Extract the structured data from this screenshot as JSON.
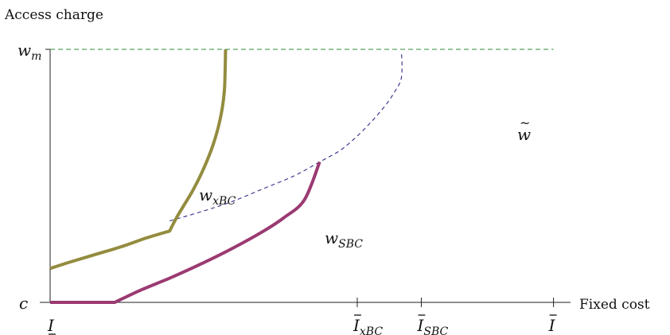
{
  "chart_data": {
    "type": "line",
    "ylabel": "Access charge",
    "xlabel": "Fixed cost",
    "y_ticks": [
      {
        "base": "c",
        "sub": "",
        "y": 0
      },
      {
        "base": "w",
        "sub": "m",
        "y": 1
      }
    ],
    "x_ticks": [
      {
        "base": "I",
        "sub": "",
        "mark": "underline",
        "x": 0
      },
      {
        "base": "I",
        "sub": "xBC",
        "mark": "bar",
        "x": 0.604
      },
      {
        "base": "I",
        "sub": "SBC",
        "mark": "bar",
        "x": 0.73
      },
      {
        "base": "I",
        "sub": "",
        "mark": "bar",
        "x": 0.99
      }
    ],
    "xlim": [
      0,
      1
    ],
    "ylim": [
      0,
      1
    ],
    "series": [
      {
        "name": "w_xBC",
        "label_base": "w",
        "label_sub": "xBC",
        "color": "#938C3F",
        "points": [
          [
            0,
            0.134
          ],
          [
            0.04,
            0.16
          ],
          [
            0.09,
            0.19
          ],
          [
            0.14,
            0.22
          ],
          [
            0.19,
            0.255
          ],
          [
            0.235,
            0.282
          ],
          [
            0.25,
            0.34
          ],
          [
            0.28,
            0.44
          ],
          [
            0.3,
            0.52
          ],
          [
            0.32,
            0.62
          ],
          [
            0.334,
            0.72
          ],
          [
            0.342,
            0.82
          ],
          [
            0.344,
            0.9
          ],
          [
            0.345,
            1.0
          ]
        ]
      },
      {
        "name": "w_SBC",
        "label_base": "w",
        "label_sub": "SBC",
        "color": "#9B3A72",
        "points": [
          [
            0,
            0
          ],
          [
            0.127,
            0
          ],
          [
            0.18,
            0.05
          ],
          [
            0.24,
            0.1
          ],
          [
            0.3,
            0.155
          ],
          [
            0.36,
            0.215
          ],
          [
            0.42,
            0.282
          ],
          [
            0.46,
            0.335
          ],
          [
            0.5,
            0.405
          ],
          [
            0.53,
            0.555
          ]
        ]
      },
      {
        "name": "w~",
        "label_base": "w",
        "label_sub": "",
        "label_mark": "tilde",
        "color": "#2E2E8A",
        "dashed": true,
        "points": [
          [
            0.235,
            0.322
          ],
          [
            0.3,
            0.36
          ],
          [
            0.36,
            0.4
          ],
          [
            0.42,
            0.45
          ],
          [
            0.48,
            0.5
          ],
          [
            0.53,
            0.555
          ],
          [
            0.57,
            0.6
          ],
          [
            0.6,
            0.65
          ],
          [
            0.63,
            0.71
          ],
          [
            0.66,
            0.78
          ],
          [
            0.68,
            0.84
          ],
          [
            0.69,
            0.88
          ],
          [
            0.692,
            0.935
          ],
          [
            0.691,
            0.985
          ]
        ]
      }
    ],
    "reference_line": {
      "y": 1,
      "color": "#2E8B3A",
      "dashed": true
    }
  }
}
